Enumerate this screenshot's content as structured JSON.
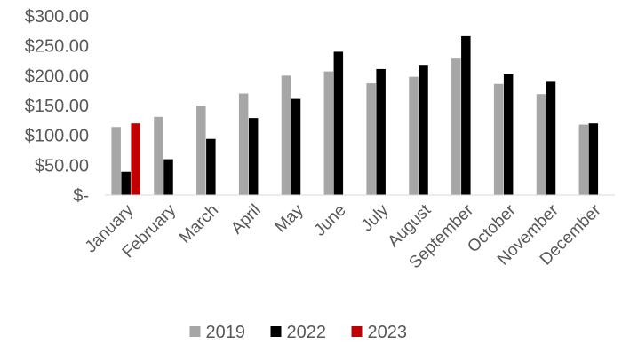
{
  "chart_data": {
    "type": "bar",
    "title": "",
    "xlabel": "",
    "ylabel": "",
    "ylim": [
      0,
      300
    ],
    "yticks": [
      0,
      50,
      100,
      150,
      200,
      250,
      300
    ],
    "ytick_labels": [
      "$-",
      "$50.00",
      "$100.00",
      "$150.00",
      "$200.00",
      "$250.00",
      "$300.00"
    ],
    "grid": false,
    "legend_position": "bottom",
    "categories": [
      "January",
      "February",
      "March",
      "April",
      "May",
      "June",
      "July",
      "August",
      "September",
      "October",
      "November",
      "December"
    ],
    "series": [
      {
        "name": "2019",
        "color": "#a6a6a6",
        "values": [
          114,
          131,
          150,
          170,
          200,
          207,
          187,
          198,
          230,
          186,
          169,
          118
        ]
      },
      {
        "name": "2022",
        "color": "#000000",
        "values": [
          39,
          60,
          94,
          129,
          161,
          240,
          211,
          218,
          266,
          202,
          191,
          120
        ]
      },
      {
        "name": "2023",
        "color": "#c00000",
        "values": [
          120,
          null,
          null,
          null,
          null,
          null,
          null,
          null,
          null,
          null,
          null,
          null
        ]
      }
    ]
  }
}
